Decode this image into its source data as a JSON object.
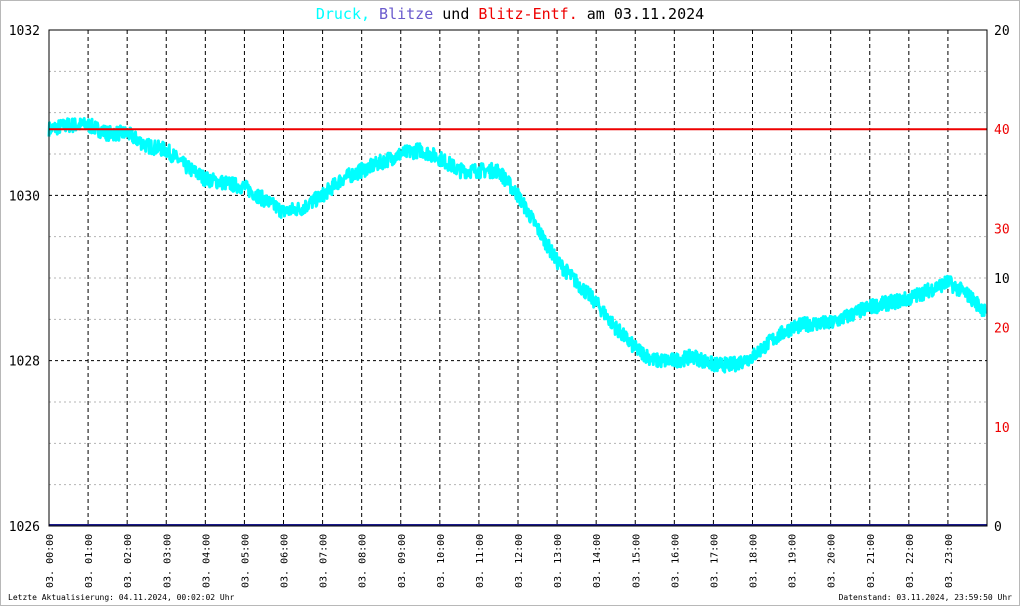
{
  "chart_data": {
    "type": "line",
    "title_parts": [
      {
        "text": "Druck",
        "color": "#00ffff"
      },
      {
        "text": ", ",
        "color": "#00ffff"
      },
      {
        "text": "Blitze",
        "color": "#6a5acd"
      },
      {
        "text": " und ",
        "color": "#000000"
      },
      {
        "text": "Blitz-Entf.",
        "color": "#ee0000"
      },
      {
        "text": " am 03.11.2024",
        "color": "#000000"
      }
    ],
    "left_axis": {
      "ticks": [
        1026,
        1028,
        1030,
        1032
      ],
      "ylim": [
        1026,
        1032
      ],
      "gridlines": [
        1026.5,
        1027,
        1027.5,
        1028,
        1028.5,
        1029,
        1029.5,
        1030,
        1030.5,
        1031,
        1031.5,
        1032
      ]
    },
    "right_axis": {
      "ticks": [
        {
          "label": "20",
          "color": "#000000",
          "frac": 1.0
        },
        {
          "label": "40",
          "color": "#ee0000",
          "frac": 0.8
        },
        {
          "label": "30",
          "color": "#ee0000",
          "frac": 0.6
        },
        {
          "label": "10",
          "color": "#000000",
          "frac": 0.5
        },
        {
          "label": "20",
          "color": "#ee0000",
          "frac": 0.4
        },
        {
          "label": "10",
          "color": "#ee0000",
          "frac": 0.2
        },
        {
          "label": "0",
          "color": "#000000",
          "frac": 0.0
        }
      ]
    },
    "x_tick_labels": [
      "03. 00:00",
      "03. 01:00",
      "03. 02:00",
      "03. 03:00",
      "03. 04:00",
      "03. 05:00",
      "03. 06:00",
      "03. 07:00",
      "03. 08:00",
      "03. 09:00",
      "03. 10:00",
      "03. 11:00",
      "03. 12:00",
      "03. 13:00",
      "03. 14:00",
      "03. 15:00",
      "03. 16:00",
      "03. 17:00",
      "03. 18:00",
      "03. 19:00",
      "03. 20:00",
      "03. 21:00",
      "03. 22:00",
      "03. 23:00"
    ],
    "x_range_hours": [
      0,
      24
    ],
    "series": [
      {
        "name": "Druck",
        "color": "#00ffff",
        "hours": [
          0,
          0.5,
          1.0,
          1.5,
          2.0,
          2.5,
          3.0,
          3.5,
          4.0,
          4.5,
          5.0,
          5.5,
          6.0,
          6.5,
          7.0,
          7.5,
          8.0,
          8.5,
          9.0,
          9.5,
          10.0,
          10.5,
          11.0,
          11.5,
          12.0,
          12.5,
          13.0,
          13.5,
          14.0,
          14.5,
          15.0,
          15.5,
          16.0,
          16.5,
          17.0,
          17.5,
          18.0,
          18.5,
          19.0,
          19.5,
          20.0,
          20.5,
          21.0,
          21.5,
          22.0,
          22.5,
          23.0,
          23.5,
          23.95
        ],
        "values": [
          1030.8,
          1030.85,
          1030.85,
          1030.75,
          1030.75,
          1030.6,
          1030.55,
          1030.35,
          1030.2,
          1030.15,
          1030.1,
          1029.95,
          1029.8,
          1029.85,
          1030.0,
          1030.2,
          1030.3,
          1030.4,
          1030.5,
          1030.55,
          1030.45,
          1030.3,
          1030.3,
          1030.3,
          1030.0,
          1029.6,
          1029.2,
          1028.95,
          1028.7,
          1028.4,
          1028.15,
          1028.0,
          1028.0,
          1028.05,
          1027.95,
          1027.95,
          1028.05,
          1028.25,
          1028.4,
          1028.45,
          1028.45,
          1028.55,
          1028.65,
          1028.7,
          1028.75,
          1028.85,
          1028.95,
          1028.8,
          1028.6
        ]
      },
      {
        "name": "Blitz-Entf.",
        "color": "#ee0000",
        "constant_right_value": "40",
        "constant_right_frac": 0.8
      },
      {
        "name": "Blitze",
        "color": "#1a1a8a",
        "constant_right_value": "0",
        "constant_right_frac": 0.0
      }
    ]
  },
  "footer": {
    "left": "Letzte Aktualisierung: 04.11.2024, 00:02:02 Uhr",
    "right": "Datenstand: 03.11.2024, 23:59:50 Uhr"
  }
}
